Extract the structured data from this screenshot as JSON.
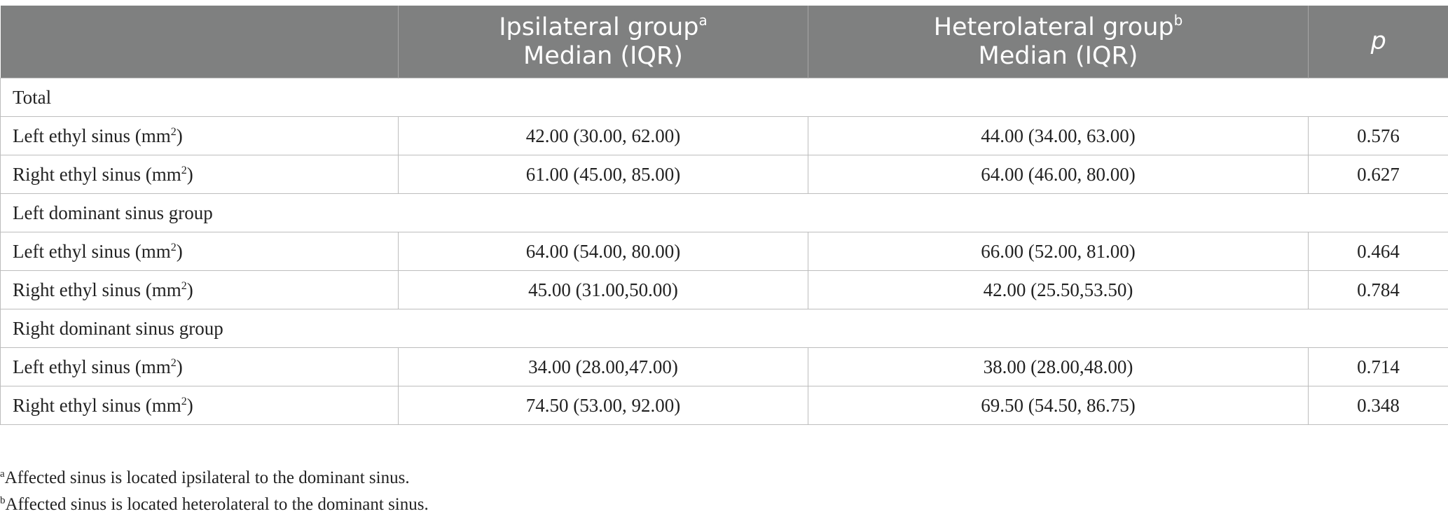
{
  "header": {
    "col0": "",
    "col1_line1": "Ipsilateral group",
    "col1_sup": "a",
    "col1_line2": "Median (IQR)",
    "col2_line1": "Heterolateral group",
    "col2_sup": "b",
    "col2_line2": "Median (IQR)",
    "col3": "p"
  },
  "groups": [
    {
      "title": "Total",
      "rows": [
        {
          "label": "Left ethyl sinus (mm",
          "sup": "2",
          "label_end": ")",
          "ipsi": "42.00 (30.00, 62.00)",
          "hetero": "44.00 (34.00, 63.00)",
          "p": "0.576"
        },
        {
          "label": "Right ethyl sinus (mm",
          "sup": "2",
          "label_end": ")",
          "ipsi": "61.00 (45.00, 85.00)",
          "hetero": "64.00 (46.00, 80.00)",
          "p": "0.627"
        }
      ]
    },
    {
      "title": "Left dominant sinus group",
      "rows": [
        {
          "label": "Left ethyl sinus (mm",
          "sup": "2",
          "label_end": ")",
          "ipsi": "64.00 (54.00, 80.00)",
          "hetero": "66.00 (52.00, 81.00)",
          "p": "0.464"
        },
        {
          "label": "Right ethyl sinus (mm",
          "sup": "2",
          "label_end": ")",
          "ipsi": "45.00 (31.00,50.00)",
          "hetero": "42.00 (25.50,53.50)",
          "p": "0.784"
        }
      ]
    },
    {
      "title": "Right dominant sinus group",
      "rows": [
        {
          "label": "Left ethyl sinus (mm",
          "sup": "2",
          "label_end": ")",
          "ipsi": "34.00 (28.00,47.00)",
          "hetero": "38.00 (28.00,48.00)",
          "p": "0.714"
        },
        {
          "label": "Right ethyl sinus (mm",
          "sup": "2",
          "label_end": ")",
          "ipsi": "74.50 (53.00, 92.00)",
          "hetero": "69.50 (54.50, 86.75)",
          "p": "0.348"
        }
      ]
    }
  ],
  "footnotes": [
    {
      "mark": "a",
      "text": "Affected sinus is located ipsilateral to the dominant sinus."
    },
    {
      "mark": "b",
      "text": "Affected sinus is located heterolateral to the dominant sinus."
    }
  ]
}
